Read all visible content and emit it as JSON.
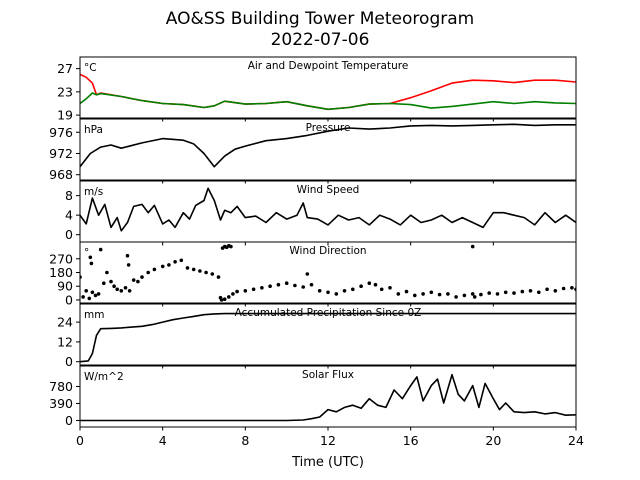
{
  "figure": {
    "title_line1": "AO&SS Building Tower Meteorogram",
    "title_line2": "2022-07-06",
    "xlabel": "Time (UTC)",
    "x_ticks": [
      0,
      4,
      8,
      12,
      16,
      20,
      24
    ],
    "x_tick_labels": [
      "0",
      "4",
      "8",
      "12",
      "16",
      "20",
      "24"
    ],
    "xlim": [
      0,
      24
    ]
  },
  "colors": {
    "temperature": "#ff0000",
    "dewpoint": "#008000",
    "line": "#000000"
  },
  "chart_data": [
    {
      "type": "line",
      "title": "Air and Dewpoint Temperature",
      "unit": "°C",
      "ylim": [
        18.5,
        29
      ],
      "y_ticks": [
        19,
        23,
        27
      ],
      "y_tick_labels": [
        "19",
        "23",
        "27"
      ],
      "x": [
        0,
        0.3,
        0.6,
        0.8,
        1,
        2,
        3,
        4,
        5,
        6,
        6.5,
        7,
        8,
        9,
        10,
        11,
        12,
        13,
        14,
        15,
        16,
        17,
        18,
        19,
        20,
        21,
        22,
        23,
        24
      ],
      "series": [
        {
          "values": [
            26,
            25.5,
            24.5,
            22.5,
            22.8,
            22.2,
            21.5,
            21.0,
            20.8,
            20.3,
            20.6,
            21.4,
            20.9,
            21.0,
            21.3,
            20.6,
            20.0,
            20.3,
            20.9,
            21.0,
            22.0,
            23.2,
            24.5,
            25.0,
            24.9,
            24.6,
            25.0,
            25.0,
            24.7
          ]
        },
        {
          "values": [
            21.0,
            21.8,
            22.8,
            22.5,
            22.7,
            22.2,
            21.5,
            21.0,
            20.8,
            20.3,
            20.6,
            21.4,
            20.9,
            21.0,
            21.3,
            20.6,
            20.0,
            20.3,
            20.9,
            21.0,
            20.8,
            20.2,
            20.5,
            20.9,
            21.3,
            21.0,
            21.3,
            21.1,
            21.0
          ]
        }
      ]
    },
    {
      "type": "line",
      "title": "Pressure",
      "unit": "hPa",
      "ylim": [
        967,
        978.5
      ],
      "y_ticks": [
        968,
        972,
        976
      ],
      "y_tick_labels": [
        "968",
        "972",
        "976"
      ],
      "x": [
        0,
        0.5,
        1,
        1.5,
        2,
        3,
        4,
        5,
        5.5,
        6,
        6.5,
        7,
        7.5,
        8,
        9,
        10,
        11,
        12,
        13,
        14,
        15,
        16,
        17,
        18,
        19,
        20,
        21,
        22,
        23,
        24
      ],
      "series": [
        {
          "values": [
            969.5,
            972.0,
            973.2,
            973.6,
            973.0,
            974.0,
            974.8,
            974.5,
            973.8,
            972.0,
            969.5,
            971.5,
            972.8,
            973.4,
            974.4,
            974.8,
            975.4,
            976.2,
            976.8,
            976.6,
            976.8,
            977.2,
            977.3,
            977.2,
            977.3,
            977.4,
            977.5,
            977.3,
            977.4,
            977.4
          ]
        }
      ]
    },
    {
      "type": "line",
      "title": "Wind Speed",
      "unit": "m/s",
      "ylim": [
        -1.5,
        11
      ],
      "y_ticks": [
        0,
        4,
        8
      ],
      "y_tick_labels": [
        "0",
        "4",
        "8"
      ],
      "x": [
        0,
        0.3,
        0.6,
        0.9,
        1.2,
        1.5,
        1.8,
        2,
        2.3,
        2.6,
        3,
        3.3,
        3.6,
        4,
        4.3,
        4.6,
        5,
        5.3,
        5.6,
        6,
        6.2,
        6.5,
        6.8,
        7,
        7.3,
        7.6,
        8,
        8.5,
        9,
        9.5,
        10,
        10.5,
        10.8,
        11,
        11.5,
        12,
        12.5,
        13,
        13.5,
        14,
        14.5,
        15,
        15.5,
        16,
        16.5,
        17,
        17.5,
        18,
        18.5,
        19,
        19.5,
        20,
        20.5,
        21,
        21.5,
        22,
        22.5,
        23,
        23.5,
        24
      ],
      "series": [
        {
          "values": [
            4.0,
            2.2,
            7.5,
            4.0,
            6.2,
            1.5,
            3.5,
            0.8,
            2.5,
            5.8,
            6.2,
            4.5,
            6.0,
            2.2,
            3.0,
            1.5,
            4.5,
            3.2,
            6.0,
            7.0,
            9.5,
            7.0,
            3.0,
            5.0,
            4.5,
            5.8,
            3.5,
            3.8,
            2.5,
            4.5,
            3.2,
            4.0,
            6.5,
            3.5,
            3.2,
            2.0,
            4.0,
            3.0,
            3.5,
            2.0,
            4.0,
            3.2,
            2.0,
            4.0,
            2.5,
            3.0,
            4.0,
            2.5,
            3.5,
            2.5,
            1.5,
            4.5,
            4.5,
            4.0,
            3.5,
            2.0,
            4.5,
            2.5,
            4.0,
            2.5
          ]
        }
      ]
    },
    {
      "type": "scatter",
      "title": "Wind Direction",
      "unit": "°",
      "ylim": [
        -20,
        380
      ],
      "y_ticks": [
        0,
        90,
        180,
        270
      ],
      "y_tick_labels": [
        "0",
        "90",
        "180",
        "270"
      ],
      "x": [
        0,
        0.15,
        0.3,
        0.45,
        0.6,
        0.75,
        0.9,
        1.0,
        1.15,
        1.3,
        1.5,
        1.65,
        1.8,
        2.0,
        2.2,
        2.4,
        2.6,
        2.8,
        3.0,
        3.3,
        3.6,
        4.0,
        4.3,
        4.6,
        4.9,
        5.2,
        5.5,
        5.8,
        6.1,
        6.4,
        6.7,
        6.85,
        7.0,
        7.2,
        7.4,
        7.6,
        8.0,
        8.4,
        8.8,
        9.2,
        9.6,
        10.0,
        10.4,
        10.8,
        11.2,
        11.6,
        12.0,
        12.4,
        12.8,
        13.2,
        13.6,
        14.0,
        14.3,
        14.6,
        15.0,
        15.4,
        15.8,
        16.2,
        16.6,
        17.0,
        17.4,
        17.8,
        18.2,
        18.6,
        19.0,
        19.4,
        19.8,
        20.2,
        20.6,
        21.0,
        21.4,
        21.8,
        22.2,
        22.6,
        23.0,
        23.4,
        23.8,
        24.0,
        0.5,
        0.55,
        2.3,
        2.35,
        6.9,
        7.0,
        7.1,
        7.2,
        7.3,
        6.8,
        11.0,
        19.0,
        19.1
      ],
      "values": [
        150,
        20,
        60,
        10,
        50,
        30,
        40,
        330,
        110,
        180,
        120,
        90,
        70,
        60,
        80,
        60,
        130,
        120,
        150,
        180,
        200,
        220,
        230,
        250,
        260,
        210,
        200,
        190,
        180,
        170,
        150,
        0,
        5,
        20,
        40,
        55,
        60,
        70,
        80,
        90,
        100,
        110,
        95,
        85,
        100,
        60,
        50,
        40,
        60,
        70,
        90,
        110,
        100,
        70,
        80,
        40,
        55,
        30,
        40,
        50,
        35,
        40,
        20,
        30,
        40,
        35,
        45,
        40,
        50,
        45,
        55,
        60,
        50,
        70,
        60,
        75,
        80,
        70,
        280,
        240,
        290,
        230,
        340,
        350,
        345,
        355,
        350,
        15,
        170,
        350,
        20
      ]
    },
    {
      "type": "line",
      "title": "Accumulated Precipitation Since 0Z",
      "unit": "mm",
      "ylim": [
        -2,
        35
      ],
      "y_ticks": [
        0,
        12,
        24
      ],
      "y_tick_labels": [
        "0",
        "12",
        "24"
      ],
      "x": [
        0,
        0.4,
        0.6,
        0.8,
        1.0,
        1.5,
        2.0,
        2.5,
        3.0,
        3.5,
        4.0,
        4.5,
        5.0,
        5.5,
        6.0,
        6.5,
        7.0,
        8.0,
        10.0,
        12.0,
        14.0,
        16.0,
        18.0,
        20.0,
        22.0,
        24.0
      ],
      "series": [
        {
          "values": [
            0,
            0.5,
            5,
            16,
            20,
            20.2,
            20.5,
            21,
            21.5,
            22.5,
            24,
            25.5,
            26.5,
            27.5,
            28.5,
            29,
            29.2,
            29.2,
            29.2,
            29.2,
            29.2,
            29.2,
            29.2,
            29.2,
            29.2,
            29.2
          ]
        }
      ]
    },
    {
      "type": "line",
      "title": "Solar Flux",
      "unit": "W/m^2",
      "ylim": [
        -150,
        1250
      ],
      "y_ticks": [
        0,
        390,
        780
      ],
      "y_tick_labels": [
        "0",
        "390",
        "780"
      ],
      "x": [
        0,
        2,
        4,
        6,
        8,
        10,
        10.8,
        11.2,
        11.6,
        12,
        12.4,
        12.8,
        13.2,
        13.6,
        14.0,
        14.4,
        14.8,
        15.2,
        15.6,
        16.0,
        16.3,
        16.6,
        17.0,
        17.3,
        17.6,
        18.0,
        18.3,
        18.6,
        19.0,
        19.3,
        19.6,
        20.0,
        20.3,
        20.6,
        21.0,
        21.5,
        22.0,
        22.5,
        23.0,
        23.5,
        24.0
      ],
      "series": [
        {
          "values": [
            0,
            0,
            0,
            0,
            0,
            0,
            10,
            40,
            80,
            250,
            200,
            300,
            350,
            280,
            500,
            350,
            300,
            700,
            500,
            800,
            1000,
            450,
            800,
            950,
            400,
            1050,
            600,
            450,
            800,
            300,
            850,
            500,
            250,
            400,
            200,
            180,
            200,
            150,
            180,
            120,
            130
          ]
        }
      ]
    }
  ]
}
